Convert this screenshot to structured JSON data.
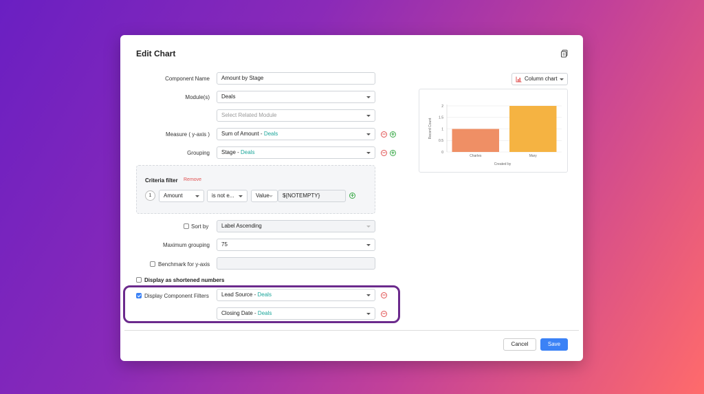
{
  "dialog": {
    "title": "Edit Chart"
  },
  "form": {
    "component_name": {
      "label": "Component Name",
      "value": "Amount by Stage"
    },
    "modules": {
      "label": "Module(s)",
      "value": "Deals",
      "related_placeholder": "Select Related Module"
    },
    "measure": {
      "label": "Measure ( y-axis )",
      "value": "Sum of Amount",
      "module": "Deals"
    },
    "grouping": {
      "label": "Grouping",
      "value": "Stage",
      "module": "Deals"
    },
    "criteria": {
      "title": "Criteria filter",
      "remove_label": "Remove",
      "row_number": "1",
      "field": "Amount",
      "operator": "is not e...",
      "value_type": "Value",
      "value": "${NOTEMPTY}"
    },
    "sort_by": {
      "label": "Sort by",
      "value": "Label Ascending",
      "checked": false
    },
    "max_grouping": {
      "label": "Maximum grouping",
      "value": "75"
    },
    "benchmark": {
      "label": "Benchmark for y-axis",
      "checked": false
    },
    "shortened": {
      "label": "Display as shortened numbers",
      "checked": false
    },
    "component_filters": {
      "label": "Display Component Filters",
      "checked": true,
      "filters": [
        {
          "value": "Lead Source",
          "module": "Deals"
        },
        {
          "value": "Closing Date",
          "module": "Deals"
        }
      ]
    }
  },
  "buttons": {
    "cancel": "Cancel",
    "save": "Save"
  },
  "chart_type_label": "Column chart",
  "chart_data": {
    "type": "bar",
    "categories": [
      "Charles",
      "Mary"
    ],
    "values": [
      1,
      2
    ],
    "title": "",
    "xlabel": "Created by",
    "ylabel": "Record Count",
    "ylim": [
      0,
      2
    ],
    "yticks": [
      "0",
      "0.5",
      "1",
      "1.5",
      "2"
    ],
    "colors": [
      "#ef8f65",
      "#f5b342"
    ]
  }
}
